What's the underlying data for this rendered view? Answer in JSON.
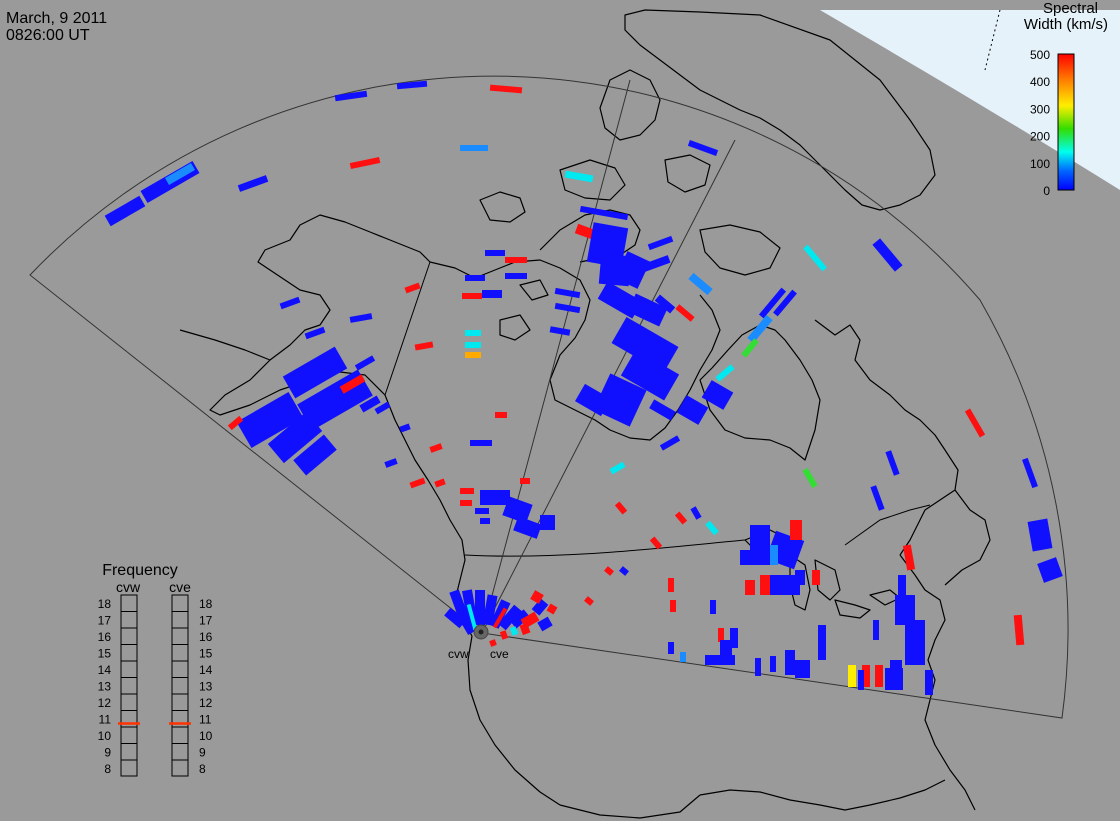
{
  "header": {
    "date": "March, 9 2011",
    "time": "0826:00 UT"
  },
  "colorbar": {
    "title_line1": "Spectral",
    "title_line2": "Width (km/s)",
    "ticks": [
      "500",
      "400",
      "300",
      "200",
      "100",
      "0"
    ],
    "colors": [
      "#ff0000",
      "#ff7700",
      "#ffee00",
      "#33dd00",
      "#00ffee",
      "#0066ff",
      "#0000ff"
    ]
  },
  "radars": {
    "west_code": "cvw",
    "east_code": "cve"
  },
  "frequency_panel": {
    "title": "Frequency",
    "labels": [
      "cvw",
      "cve"
    ],
    "ticks": [
      "18",
      "17",
      "16",
      "15",
      "14",
      "13",
      "12",
      "11",
      "10",
      "9",
      "8"
    ],
    "range": [
      8,
      18
    ],
    "cvw_value": 10.7,
    "cve_value": 10.7,
    "indicator_color": "#ff3300"
  },
  "colors": {
    "background": "#9a9a9a",
    "coastline": "#000000",
    "night_terminator": "#e6f2fa",
    "echo_blue": "#1010ff",
    "echo_red": "#ff1010"
  }
}
